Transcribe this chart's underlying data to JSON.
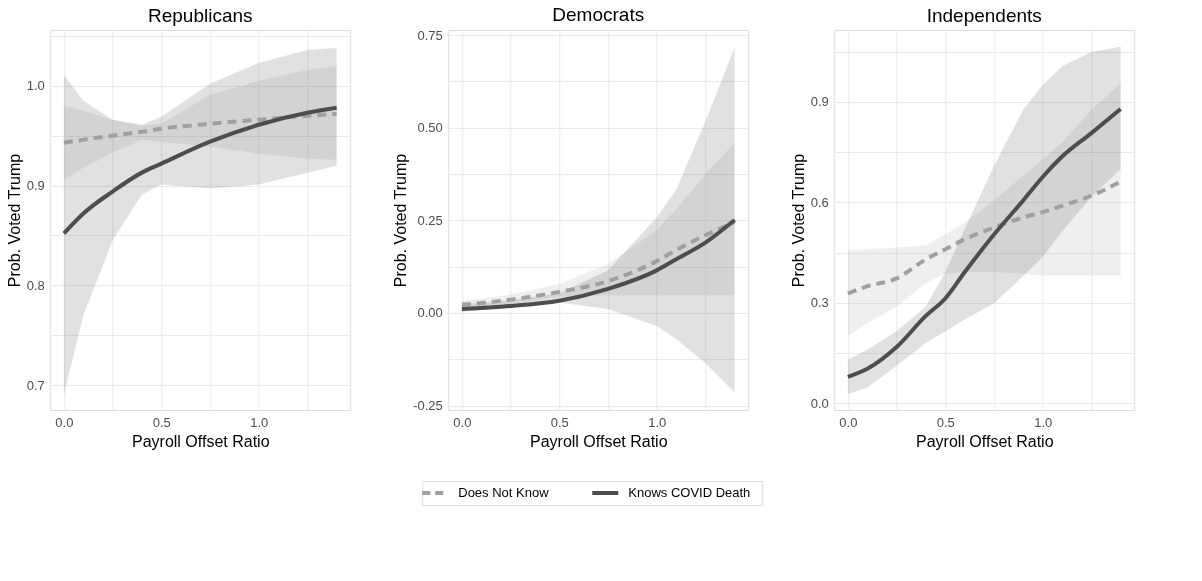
{
  "chart_data": [
    {
      "type": "line",
      "title": "Republicans",
      "xlabel": "Payroll Offset Ratio",
      "ylabel": "Prob. Voted Trump",
      "legend": "bottom",
      "grid": true,
      "xlim": [
        -0.07,
        1.47
      ],
      "xticks": [
        {
          "value": 0,
          "label": "0.0"
        },
        {
          "value": 0.25,
          "label": null
        },
        {
          "value": 0.5,
          "label": "0.5"
        },
        {
          "value": 0.75,
          "label": null
        },
        {
          "value": 1,
          "label": "1.0"
        },
        {
          "value": 1.25,
          "label": null
        }
      ],
      "ylim": [
        0.675,
        1.056
      ],
      "yticks": [
        0.7,
        {
          "value": 0.75,
          "label": null
        },
        0.8,
        {
          "value": 0.85,
          "label": null
        },
        0.9,
        {
          "value": 0.95,
          "label": null
        },
        {
          "value": 1,
          "label": "1.0"
        },
        {
          "value": 1.05,
          "label": null
        }
      ],
      "series": [
        {
          "name": "Does Not Know",
          "color": "#a0a0a0",
          "line_style": "dashed",
          "x": [
            0,
            0.1,
            0.25,
            0.4,
            0.5,
            0.75,
            1.0,
            1.25,
            1.4
          ],
          "values": [
            0.943,
            0.946,
            0.95,
            0.954,
            0.957,
            0.962,
            0.966,
            0.97,
            0.972
          ],
          "lower": [
            0.905,
            0.918,
            0.933,
            0.946,
            0.944,
            0.939,
            0.932,
            0.927,
            0.926
          ],
          "upper": [
            0.98,
            0.975,
            0.966,
            0.96,
            0.962,
            0.991,
            1.005,
            1.016,
            1.02
          ]
        },
        {
          "name": "Knows COVID Death",
          "color": "#4d4d4d",
          "line_style": "solid",
          "x": [
            0,
            0.1,
            0.25,
            0.4,
            0.5,
            0.75,
            1.0,
            1.25,
            1.4
          ],
          "values": [
            0.852,
            0.872,
            0.894,
            0.913,
            0.922,
            0.944,
            0.961,
            0.973,
            0.978
          ],
          "lower": [
            0.69,
            0.77,
            0.845,
            0.891,
            0.901,
            0.897,
            0.901,
            0.913,
            0.92
          ],
          "upper": [
            1.011,
            0.985,
            0.966,
            0.961,
            0.969,
            1.002,
            1.023,
            1.036,
            1.038
          ]
        }
      ]
    },
    {
      "type": "line",
      "title": "Democrats",
      "xlabel": "Payroll Offset Ratio",
      "ylabel": "Prob. Voted Trump",
      "legend": "bottom",
      "grid": true,
      "xlim": [
        -0.07,
        1.47
      ],
      "xticks": [
        {
          "value": 0,
          "label": "0.0"
        },
        {
          "value": 0.25,
          "label": null
        },
        {
          "value": 0.5,
          "label": "0.5"
        },
        {
          "value": 0.75,
          "label": null
        },
        {
          "value": 1,
          "label": "1.0"
        },
        {
          "value": 1.25,
          "label": null
        }
      ],
      "ylim": [
        -0.262,
        0.764
      ],
      "yticks": [
        -0.25,
        {
          "value": -0.125,
          "label": null
        },
        {
          "value": 0,
          "label": "0.00"
        },
        {
          "value": 0.125,
          "label": null
        },
        0.25,
        {
          "value": 0.375,
          "label": null
        },
        {
          "value": 0.5,
          "label": "0.50"
        },
        {
          "value": 0.625,
          "label": null
        },
        0.75
      ],
      "series": [
        {
          "name": "Does Not Know",
          "color": "#a0a0a0",
          "line_style": "dashed",
          "x": [
            0,
            0.25,
            0.5,
            0.75,
            1.0,
            1.1,
            1.25,
            1.4
          ],
          "values": [
            0.022,
            0.036,
            0.057,
            0.086,
            0.14,
            0.17,
            0.21,
            0.245
          ],
          "lower": [
            0.011,
            0.025,
            0.044,
            0.048,
            0.048,
            0.048,
            0.048,
            0.048
          ],
          "upper": [
            0.032,
            0.05,
            0.078,
            0.132,
            0.224,
            0.28,
            0.375,
            0.458
          ]
        },
        {
          "name": "Knows COVID Death",
          "color": "#4d4d4d",
          "line_style": "solid",
          "x": [
            0,
            0.25,
            0.5,
            0.75,
            1.0,
            1.1,
            1.25,
            1.4
          ],
          "values": [
            0.011,
            0.019,
            0.033,
            0.065,
            0.115,
            0.145,
            0.19,
            0.251
          ],
          "lower": [
            0.003,
            0.015,
            0.028,
            0.011,
            -0.035,
            -0.07,
            -0.135,
            -0.215
          ],
          "upper": [
            0.023,
            0.035,
            0.053,
            0.115,
            0.258,
            0.333,
            0.517,
            0.717
          ]
        }
      ]
    },
    {
      "type": "line",
      "title": "Independents",
      "xlabel": "Payroll Offset Ratio",
      "ylabel": "Prob. Voted Trump",
      "legend": "bottom",
      "grid": true,
      "xlim": [
        -0.07,
        1.47
      ],
      "xticks": [
        {
          "value": 0,
          "label": "0.0"
        },
        {
          "value": 0.25,
          "label": null
        },
        {
          "value": 0.5,
          "label": "0.5"
        },
        {
          "value": 0.75,
          "label": null
        },
        {
          "value": 1,
          "label": "1.0"
        },
        {
          "value": 1.25,
          "label": null
        }
      ],
      "ylim": [
        -0.02,
        1.115
      ],
      "yticks": [
        {
          "value": 0,
          "label": "0.0"
        },
        {
          "value": 0.15,
          "label": null
        },
        0.3,
        {
          "value": 0.45,
          "label": null
        },
        0.6,
        {
          "value": 0.75,
          "label": null
        },
        0.9,
        {
          "value": 1.05,
          "label": null
        }
      ],
      "series": [
        {
          "name": "Does Not Know",
          "color": "#a0a0a0",
          "line_style": "dashed",
          "x": [
            0,
            0.1,
            0.25,
            0.4,
            0.5,
            0.6,
            0.75,
            0.9,
            1.0,
            1.1,
            1.25,
            1.4
          ],
          "values": [
            0.328,
            0.35,
            0.373,
            0.43,
            0.46,
            0.49,
            0.525,
            0.555,
            0.571,
            0.59,
            0.62,
            0.662
          ],
          "lower": [
            0.2,
            0.24,
            0.289,
            0.359,
            0.387,
            0.392,
            0.392,
            0.387,
            0.382,
            0.382,
            0.382,
            0.382
          ],
          "upper": [
            0.457,
            0.46,
            0.465,
            0.471,
            0.504,
            0.54,
            0.606,
            0.68,
            0.728,
            0.78,
            0.877,
            0.956
          ]
        },
        {
          "name": "Knows COVID Death",
          "color": "#4d4d4d",
          "line_style": "solid",
          "x": [
            0,
            0.1,
            0.25,
            0.4,
            0.5,
            0.6,
            0.75,
            0.9,
            1.0,
            1.1,
            1.25,
            1.4
          ],
          "values": [
            0.079,
            0.103,
            0.168,
            0.261,
            0.313,
            0.392,
            0.504,
            0.606,
            0.676,
            0.737,
            0.807,
            0.879
          ],
          "lower": [
            0.028,
            0.047,
            0.112,
            0.18,
            0.215,
            0.25,
            0.299,
            0.38,
            0.438,
            0.513,
            0.616,
            0.7
          ],
          "upper": [
            0.131,
            0.16,
            0.215,
            0.289,
            0.392,
            0.522,
            0.709,
            0.877,
            0.951,
            1.007,
            1.049,
            1.065
          ]
        }
      ]
    }
  ]
}
